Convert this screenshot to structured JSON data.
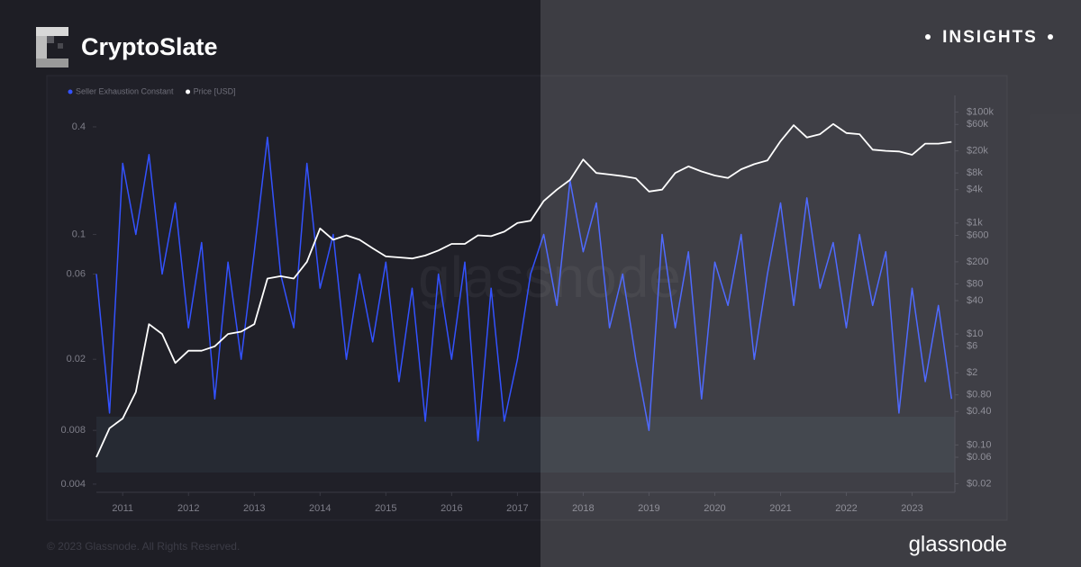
{
  "brand": "CryptoSlate",
  "badge": "INSIGHTS",
  "watermark": "glassnode",
  "footer": {
    "copyright": "© 2023 Glassnode. All Rights Reserved.",
    "logo": "glassnode"
  },
  "chart_data": {
    "type": "line",
    "x": [
      2010.6,
      2010.8,
      2011.0,
      2011.2,
      2011.4,
      2011.6,
      2011.8,
      2012.0,
      2012.2,
      2012.4,
      2012.6,
      2012.8,
      2013.0,
      2013.2,
      2013.4,
      2013.6,
      2013.8,
      2014.0,
      2014.2,
      2014.4,
      2014.6,
      2014.8,
      2015.0,
      2015.2,
      2015.4,
      2015.6,
      2015.8,
      2016.0,
      2016.2,
      2016.4,
      2016.6,
      2016.8,
      2017.0,
      2017.2,
      2017.4,
      2017.6,
      2017.8,
      2018.0,
      2018.2,
      2018.4,
      2018.6,
      2018.8,
      2019.0,
      2019.2,
      2019.4,
      2019.6,
      2019.8,
      2020.0,
      2020.2,
      2020.4,
      2020.6,
      2020.8,
      2021.0,
      2021.2,
      2021.4,
      2021.6,
      2021.8,
      2022.0,
      2022.2,
      2022.4,
      2022.6,
      2022.8,
      2023.0,
      2023.2,
      2023.4,
      2023.6
    ],
    "series": [
      {
        "name": "Seller Exhaustion Constant",
        "color": "#3352ff",
        "axis": "y",
        "values": [
          0.06,
          0.01,
          0.25,
          0.1,
          0.28,
          0.06,
          0.15,
          0.03,
          0.09,
          0.012,
          0.07,
          0.02,
          0.08,
          0.35,
          0.06,
          0.03,
          0.25,
          0.05,
          0.1,
          0.02,
          0.06,
          0.025,
          0.07,
          0.015,
          0.05,
          0.009,
          0.06,
          0.02,
          0.07,
          0.007,
          0.05,
          0.009,
          0.02,
          0.06,
          0.1,
          0.04,
          0.2,
          0.08,
          0.15,
          0.03,
          0.06,
          0.02,
          0.008,
          0.1,
          0.03,
          0.08,
          0.012,
          0.07,
          0.04,
          0.1,
          0.02,
          0.06,
          0.15,
          0.04,
          0.16,
          0.05,
          0.09,
          0.03,
          0.1,
          0.04,
          0.08,
          0.01,
          0.05,
          0.015,
          0.04,
          0.012
        ]
      },
      {
        "name": "Price [USD]",
        "color": "#ffffff",
        "axis": "y2",
        "values": [
          0.06,
          0.2,
          0.3,
          0.9,
          15,
          10,
          3,
          5,
          5,
          6,
          10,
          11,
          15,
          100,
          110,
          100,
          200,
          800,
          500,
          600,
          500,
          350,
          250,
          240,
          230,
          260,
          320,
          420,
          420,
          600,
          580,
          700,
          1000,
          1100,
          2500,
          4000,
          6000,
          14000,
          8000,
          7500,
          7000,
          6400,
          3700,
          4000,
          8000,
          10500,
          8500,
          7200,
          6500,
          9300,
          11500,
          13500,
          30000,
          58000,
          35000,
          40000,
          61000,
          42000,
          40000,
          21000,
          20000,
          19500,
          17000,
          27000,
          27000,
          29000
        ]
      }
    ],
    "xlim": [
      2010.6,
      2023.65
    ],
    "xticks": [
      2011,
      2012,
      2013,
      2014,
      2015,
      2016,
      2017,
      2018,
      2019,
      2020,
      2021,
      2022,
      2023
    ],
    "ylim": [
      0.0036,
      0.6
    ],
    "ylog": true,
    "yticks": [
      0.004,
      0.008,
      0.02,
      0.06,
      0.1,
      0.4
    ],
    "y2lim": [
      0.014,
      200000
    ],
    "y2log": true,
    "y2ticks": [
      {
        "value": 100000,
        "label": "$100k"
      },
      {
        "value": 60000,
        "label": "$60k"
      },
      {
        "value": 20000,
        "label": "$20k"
      },
      {
        "value": 8000,
        "label": "$8k"
      },
      {
        "value": 4000,
        "label": "$4k"
      },
      {
        "value": 1000,
        "label": "$1k"
      },
      {
        "value": 600,
        "label": "$600"
      },
      {
        "value": 200,
        "label": "$200"
      },
      {
        "value": 80,
        "label": "$80"
      },
      {
        "value": 40,
        "label": "$40"
      },
      {
        "value": 10,
        "label": "$10"
      },
      {
        "value": 6,
        "label": "$6"
      },
      {
        "value": 2,
        "label": "$2"
      },
      {
        "value": 0.8,
        "label": "$0.80"
      },
      {
        "value": 0.4,
        "label": "$0.40"
      },
      {
        "value": 0.1,
        "label": "$0.10"
      },
      {
        "value": 0.06,
        "label": "$0.06"
      },
      {
        "value": 0.02,
        "label": "$0.02"
      }
    ]
  }
}
